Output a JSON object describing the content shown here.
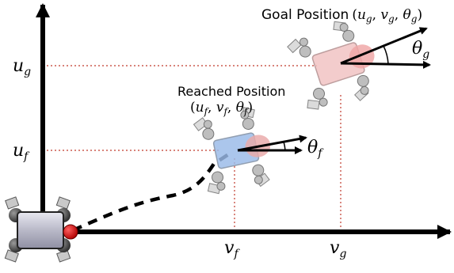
{
  "axes": {
    "y_tick_goal": "u",
    "y_tick_goal_sub": "g",
    "y_tick_reached": "u",
    "y_tick_reached_sub": "f",
    "x_tick_reached": "v",
    "x_tick_reached_sub": "f",
    "x_tick_goal": "v",
    "x_tick_goal_sub": "g"
  },
  "goal": {
    "label": "Goal Position",
    "open": "(",
    "u": "u",
    "u_sub": "g",
    "v": "v",
    "v_sub": "g",
    "theta": "θ",
    "theta_sub": "g",
    "close": ")",
    "angle_symbol": "θ",
    "angle_sub": "g",
    "body_color": "#f3b3b3"
  },
  "reached": {
    "label": "Reached Position",
    "open": "(",
    "u": "u",
    "u_sub": "f",
    "v": "v",
    "v_sub": "f",
    "theta": "θ",
    "theta_sub": "f",
    "close": ")",
    "angle_symbol": "θ",
    "angle_sub": "f",
    "body_color": "#a9c6ee"
  },
  "start": {
    "body_color": "#c9c9d6",
    "marker_color": "#e01a1a"
  },
  "guide_color": "#c0392b"
}
